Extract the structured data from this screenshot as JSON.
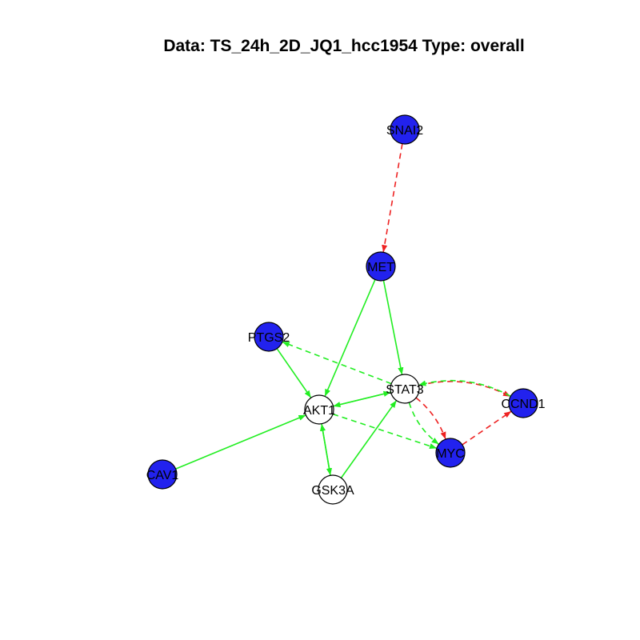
{
  "title": "Data: TS_24h_2D_JQ1_hcc1954 Type: overall",
  "colors": {
    "filled_node": "#2222ee",
    "empty_node": "#ffffff",
    "activation": "#22ee22",
    "inhibition": "#ee2222"
  },
  "nodes": [
    {
      "id": "SNAI2",
      "label": "SNAI2",
      "filled": true
    },
    {
      "id": "MET",
      "label": "MET",
      "filled": true
    },
    {
      "id": "PTGS2",
      "label": "PTGS2",
      "filled": true
    },
    {
      "id": "STAT3",
      "label": "STAT3",
      "filled": false
    },
    {
      "id": "AKT1",
      "label": "AKT1",
      "filled": false
    },
    {
      "id": "CCND1",
      "label": "CCND1",
      "filled": true
    },
    {
      "id": "MYC",
      "label": "MYC",
      "filled": true
    },
    {
      "id": "CAV1",
      "label": "CAV1",
      "filled": true
    },
    {
      "id": "GSK3A",
      "label": "GSK3A",
      "filled": false
    }
  ],
  "edges": [
    {
      "from": "SNAI2",
      "to": "MET",
      "color": "inhibition",
      "dashed": true
    },
    {
      "from": "MET",
      "to": "AKT1",
      "color": "activation",
      "dashed": false
    },
    {
      "from": "MET",
      "to": "STAT3",
      "color": "activation",
      "dashed": false
    },
    {
      "from": "PTGS2",
      "to": "AKT1",
      "color": "activation",
      "dashed": false
    },
    {
      "from": "STAT3",
      "to": "PTGS2",
      "color": "activation",
      "dashed": true
    },
    {
      "from": "AKT1",
      "to": "STAT3",
      "color": "activation",
      "dashed": false
    },
    {
      "from": "STAT3",
      "to": "AKT1",
      "color": "activation",
      "dashed": false
    },
    {
      "from": "CAV1",
      "to": "AKT1",
      "color": "activation",
      "dashed": false
    },
    {
      "from": "AKT1",
      "to": "GSK3A",
      "color": "activation",
      "dashed": false
    },
    {
      "from": "GSK3A",
      "to": "AKT1",
      "color": "activation",
      "dashed": false
    },
    {
      "from": "GSK3A",
      "to": "STAT3",
      "color": "activation",
      "dashed": false
    },
    {
      "from": "AKT1",
      "to": "MYC",
      "color": "activation",
      "dashed": true
    },
    {
      "from": "STAT3",
      "to": "CCND1",
      "color": "inhibition",
      "dashed": true
    },
    {
      "from": "CCND1",
      "to": "STAT3",
      "color": "activation",
      "dashed": true
    },
    {
      "from": "STAT3",
      "to": "MYC",
      "color": "inhibition",
      "dashed": true
    },
    {
      "from": "STAT3",
      "to": "MYC",
      "color": "activation",
      "dashed": true
    },
    {
      "from": "MYC",
      "to": "CCND1",
      "color": "inhibition",
      "dashed": true
    }
  ]
}
